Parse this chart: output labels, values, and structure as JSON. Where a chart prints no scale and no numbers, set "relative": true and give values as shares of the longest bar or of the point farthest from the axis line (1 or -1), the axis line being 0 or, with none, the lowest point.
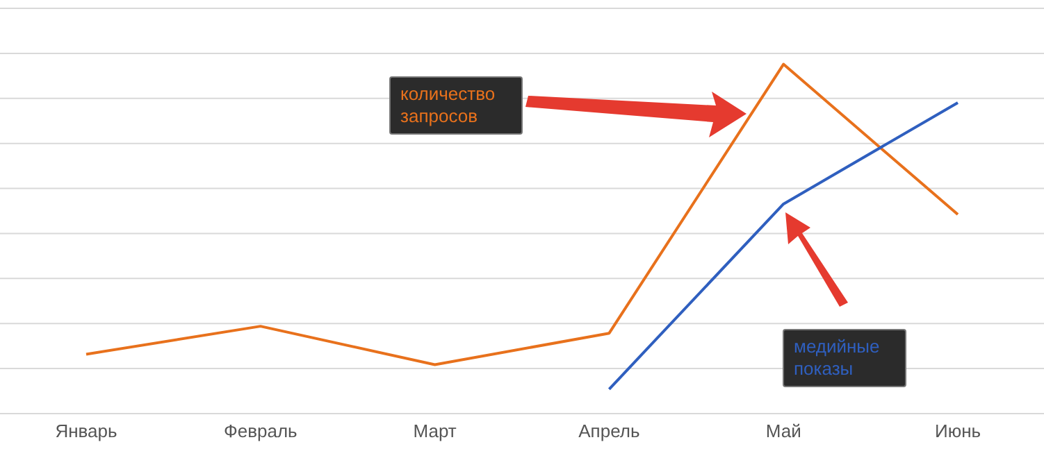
{
  "chart_data": {
    "type": "line",
    "relative": true,
    "grid": "y",
    "legend": false,
    "marker": "none",
    "line_style": "solid",
    "categories": [
      "Январь",
      "Февраль",
      "Март",
      "Апрель",
      "Май",
      "Июнь"
    ],
    "series": [
      {
        "name": "количество запросов",
        "color": "#e8711c",
        "values": [
          0.17,
          0.25,
          0.14,
          0.23,
          1,
          0.57
        ]
      },
      {
        "name": "медийные показы",
        "color": "#2f5fbf",
        "values": [
          null,
          null,
          null,
          0.07,
          0.6,
          0.89
        ]
      }
    ]
  }
}
